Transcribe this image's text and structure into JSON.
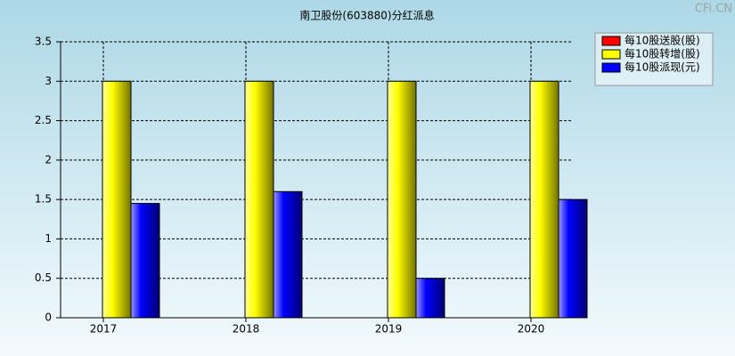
{
  "chart_data": {
    "type": "bar",
    "title": "南卫股份(603880)分红派息",
    "watermark": "CFi.CN",
    "categories": [
      "2017",
      "2018",
      "2019",
      "2020"
    ],
    "series": [
      {
        "name": "每10股送股(股)",
        "color": "#ff0000",
        "values": [
          0,
          0,
          0,
          0
        ]
      },
      {
        "name": "每10股转增(股)",
        "color": "#ffff00",
        "values": [
          3,
          3,
          3,
          3
        ]
      },
      {
        "name": "每10股派现(元)",
        "color": "#0000ff",
        "values": [
          1.45,
          1.6,
          0.5,
          1.5
        ]
      }
    ],
    "ylim": [
      0,
      3.5
    ],
    "yticks": [
      0,
      0.5,
      1,
      1.5,
      2,
      2.5,
      3,
      3.5
    ],
    "grid": true,
    "legend": "top-right"
  }
}
